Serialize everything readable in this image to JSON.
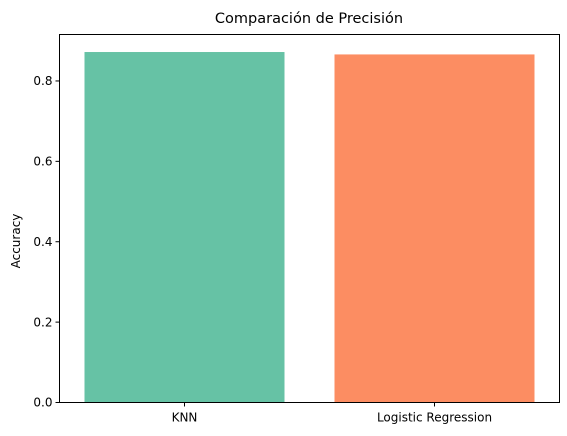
{
  "chart_data": {
    "type": "bar",
    "title": "Comparación de Precisión",
    "xlabel": "",
    "ylabel": "Accuracy",
    "categories": [
      "KNN",
      "Logistic Regression"
    ],
    "values": [
      0.872,
      0.866
    ],
    "colors": [
      "#66c2a5",
      "#fc8d62"
    ],
    "ylim": [
      0,
      0.9156
    ],
    "yticks": [
      0.0,
      0.2,
      0.4,
      0.6,
      0.8
    ],
    "ytick_labels": [
      "0.0",
      "0.2",
      "0.4",
      "0.6",
      "0.8"
    ],
    "grid": false,
    "legend": "none"
  }
}
